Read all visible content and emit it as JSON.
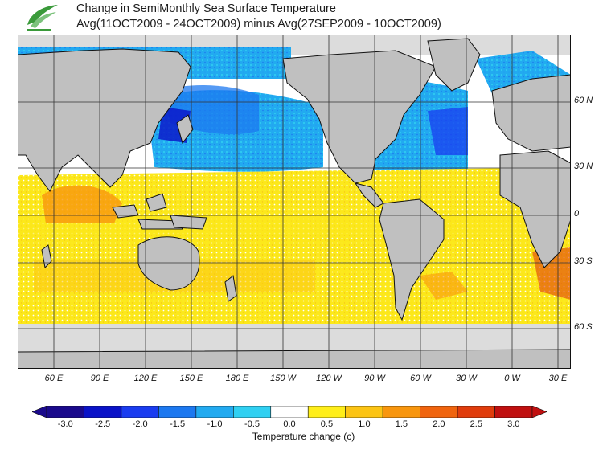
{
  "header": {
    "title_line1": "Change in SemiMonthly Sea Surface Temperature",
    "title_line2": "Avg(11OCT2009 - 24OCT2009) minus Avg(27SEP2009 - 10OCT2009)"
  },
  "logo": {
    "icon": "leaf-swirl-logo",
    "color": "#3a9a3a"
  },
  "map": {
    "projection": "cylindrical, centered 150W",
    "lat_labels": [
      "60 N",
      "30 N",
      "0",
      "30 S",
      "60 S"
    ],
    "lon_labels": [
      "60 E",
      "90 E",
      "120 E",
      "150 E",
      "180 E",
      "150 W",
      "120 W",
      "90 W",
      "60 W",
      "30 W",
      "0 W",
      "30 E"
    ],
    "land_color": "#c0c0c0",
    "ice_color": "#dcdcdc"
  },
  "colorbar": {
    "title": "Temperature change  (c)",
    "tick_labels": [
      "-3.0",
      "-2.5",
      "-2.0",
      "-1.5",
      "-1.0",
      "-0.5",
      "0.0",
      "0.5",
      "1.0",
      "1.5",
      "2.0",
      "2.5",
      "3.0"
    ],
    "colors": [
      "#1a0a8c",
      "#0a12c8",
      "#1a3cf0",
      "#1c78f0",
      "#22aaf0",
      "#30d0f2",
      "#ffffff",
      "#ffee1a",
      "#fcc414",
      "#f8960e",
      "#f0640e",
      "#e03c0c",
      "#c01010"
    ]
  }
}
